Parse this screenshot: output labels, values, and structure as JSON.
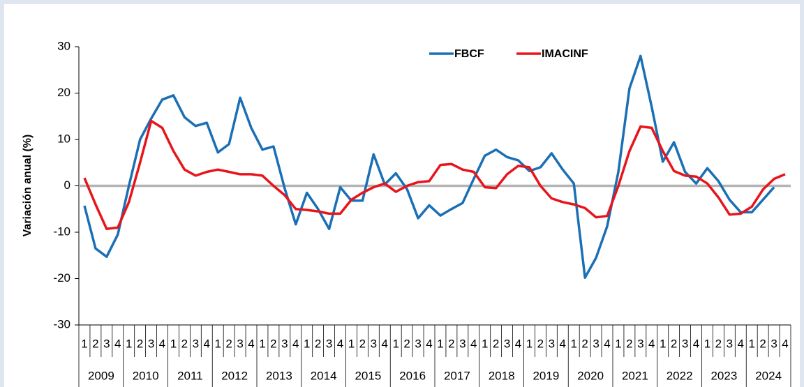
{
  "chart_data": {
    "type": "line",
    "y_label": "Variación anual (%)",
    "categories": [
      "1",
      "2",
      "3",
      "4",
      "1",
      "2",
      "3",
      "4",
      "1",
      "2",
      "3",
      "4",
      "1",
      "2",
      "3",
      "4",
      "1",
      "2",
      "3",
      "4",
      "1",
      "2",
      "3",
      "4",
      "1",
      "2",
      "3",
      "4",
      "1",
      "2",
      "3",
      "4",
      "1",
      "2",
      "3",
      "4",
      "1",
      "2",
      "3",
      "4",
      "1",
      "2",
      "3",
      "4",
      "1",
      "2",
      "3",
      "4",
      "1",
      "2",
      "3",
      "4",
      "1",
      "2",
      "3",
      "4",
      "1",
      "2",
      "3",
      "4",
      "1",
      "2",
      "3",
      "4"
    ],
    "groups": [
      "2009",
      "2010",
      "2011",
      "2012",
      "2013",
      "2014",
      "2015",
      "2016",
      "2017",
      "2018",
      "2019",
      "2020",
      "2021",
      "2022",
      "2023",
      "2024"
    ],
    "series": [
      {
        "name": "FBCF",
        "color": "#1a6fb5",
        "values": [
          -4.3,
          -13.5,
          -15.3,
          -10.5,
          0,
          10,
          14.5,
          18.6,
          19.5,
          14.8,
          12.9,
          13.6,
          7.2,
          9,
          19,
          12.5,
          7.8,
          8.5,
          -0.5,
          -8.3,
          -1.5,
          -5,
          -9.3,
          -0.3,
          -3.2,
          -3.2,
          6.8,
          0.3,
          2.7,
          -0.7,
          -7,
          -4.2,
          -6.4,
          -5,
          -3.7,
          1.5,
          6.5,
          7.8,
          6.2,
          5.5,
          3.2,
          4,
          7,
          3.5,
          0.5,
          -19.8,
          -15.5,
          -8.7,
          3,
          21,
          28,
          17,
          5.2,
          9.4,
          3,
          0.5,
          3.8,
          1,
          -3,
          -5.7,
          -5.7,
          -3,
          -0.3,
          null
        ]
      },
      {
        "name": "IMACINF",
        "color": "#e8141b",
        "values": [
          1.7,
          -4,
          -9.3,
          -9,
          -3.5,
          5,
          14,
          12.5,
          7.5,
          3.5,
          2.2,
          3,
          3.5,
          3,
          2.5,
          2.5,
          2.2,
          0,
          -2,
          -5,
          -5.2,
          -5.5,
          -6,
          -6,
          -3,
          -1.5,
          -0.3,
          0.5,
          -1.3,
          0,
          0.8,
          1,
          4.5,
          4.7,
          3.5,
          3,
          -0.3,
          -0.5,
          2.5,
          4.3,
          4,
          0,
          -2.7,
          -3.5,
          -4,
          -4.8,
          -6.8,
          -6.5,
          0,
          7.5,
          12.8,
          12.5,
          7.5,
          3.2,
          2.2,
          2,
          0.5,
          -2.5,
          -6.2,
          -6,
          -4.5,
          -0.8,
          1.5,
          2.5
        ]
      }
    ],
    "ylim": [
      -30,
      30
    ],
    "yticks": [
      -30,
      -20,
      -10,
      0,
      10,
      20,
      30
    ],
    "zero_line_color": "#b4b4b4"
  }
}
